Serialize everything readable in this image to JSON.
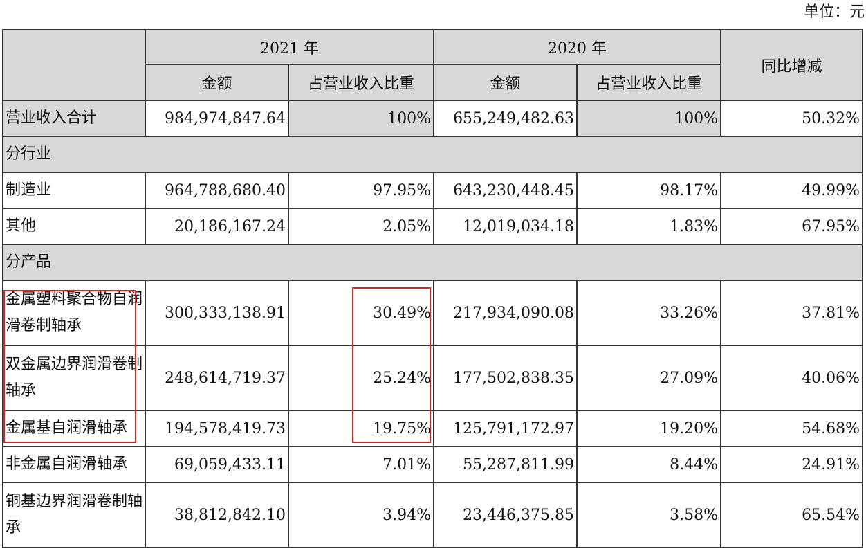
{
  "unit_label": "单位：元",
  "header": {
    "year_2021": "2021 年",
    "year_2020": "2020 年",
    "amount": "金额",
    "ratio": "占营业收入比重",
    "yoy": "同比增减"
  },
  "total": {
    "label": "营业收入合计",
    "amt_2021": "984,974,847.64",
    "ratio_2021": "100%",
    "amt_2020": "655,249,482.63",
    "ratio_2020": "100%",
    "yoy": "50.32%"
  },
  "section_industry": "分行业",
  "industry_rows": [
    {
      "label": "制造业",
      "amt_2021": "964,788,680.40",
      "ratio_2021": "97.95%",
      "amt_2020": "643,230,448.45",
      "ratio_2020": "98.17%",
      "yoy": "49.99%"
    },
    {
      "label": "其他",
      "amt_2021": "20,186,167.24",
      "ratio_2021": "2.05%",
      "amt_2020": "12,019,034.18",
      "ratio_2020": "1.83%",
      "yoy": "67.95%"
    }
  ],
  "section_product": "分产品",
  "product_rows": [
    {
      "label": "金属塑料聚合物自润滑卷制轴承",
      "amt_2021": "300,333,138.91",
      "ratio_2021": "30.49%",
      "amt_2020": "217,934,090.08",
      "ratio_2020": "33.26%",
      "yoy": "37.81%"
    },
    {
      "label": "双金属边界润滑卷制轴承",
      "amt_2021": "248,614,719.37",
      "ratio_2021": "25.24%",
      "amt_2020": "177,502,838.35",
      "ratio_2020": "27.09%",
      "yoy": "40.06%"
    },
    {
      "label": "金属基自润滑轴承",
      "amt_2021": "194,578,419.73",
      "ratio_2021": "19.75%",
      "amt_2020": "125,791,172.97",
      "ratio_2020": "19.20%",
      "yoy": "54.68%"
    },
    {
      "label": "非金属自润滑轴承",
      "amt_2021": "69,059,433.11",
      "ratio_2021": "7.01%",
      "amt_2020": "55,287,811.99",
      "ratio_2020": "8.44%",
      "yoy": "24.91%"
    },
    {
      "label": "铜基边界润滑卷制轴承",
      "amt_2021": "38,812,842.10",
      "ratio_2021": "3.94%",
      "amt_2020": "23,446,375.85",
      "ratio_2020": "3.58%",
      "yoy": "65.54%"
    }
  ],
  "highlight_color": "#e02020"
}
